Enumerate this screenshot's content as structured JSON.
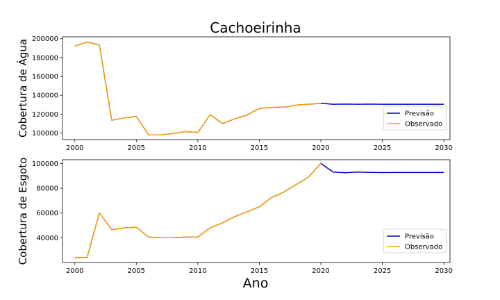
{
  "chart_data": {
    "type": "line",
    "title": "Cachoeirinha",
    "xlabel": "Ano",
    "colors": {
      "Previsão": "#0000cc",
      "Observado": "#ffa500"
    },
    "panels": [
      {
        "ylabel": "Cobertura de Água",
        "xlim": [
          1999,
          2030.5
        ],
        "ylim": [
          93000,
          202000
        ],
        "xticks": [
          2000,
          2005,
          2010,
          2015,
          2020,
          2025,
          2030
        ],
        "yticks": [
          100000,
          120000,
          140000,
          160000,
          180000,
          200000
        ],
        "legend": "lower-right",
        "series": [
          {
            "name": "Previsão",
            "x": [
              2000,
              2001,
              2002,
              2003,
              2004,
              2005,
              2006,
              2007,
              2008,
              2009,
              2010,
              2011,
              2012,
              2013,
              2014,
              2015,
              2016,
              2017,
              2018,
              2019,
              2020,
              2021,
              2022,
              2023,
              2024,
              2025,
              2026,
              2027,
              2028,
              2029,
              2030
            ],
            "y": [
              192000,
              196500,
              193500,
              113500,
              116000,
              117500,
              98000,
              98000,
              99500,
              101500,
              100500,
              119500,
              110000,
              115000,
              119000,
              126000,
              127000,
              127500,
              129500,
              130500,
              131500,
              130500,
              130600,
              130500,
              130600,
              130500,
              130500,
              130500,
              130500,
              130500,
              130500
            ]
          },
          {
            "name": "Observado",
            "x": [
              2000,
              2001,
              2002,
              2003,
              2004,
              2005,
              2006,
              2007,
              2008,
              2009,
              2010,
              2011,
              2012,
              2013,
              2014,
              2015,
              2016,
              2017,
              2018,
              2019,
              2020
            ],
            "y": [
              192000,
              196500,
              193500,
              113500,
              116000,
              117500,
              98000,
              98000,
              99500,
              101500,
              100500,
              119500,
              110000,
              115000,
              119000,
              126000,
              127000,
              127500,
              129500,
              130500,
              131500
            ]
          }
        ]
      },
      {
        "ylabel": "Cobertura de Esgoto",
        "xlim": [
          1999,
          2030.5
        ],
        "ylim": [
          20000,
          103000
        ],
        "xticks": [
          2000,
          2005,
          2010,
          2015,
          2020,
          2025,
          2030
        ],
        "yticks": [
          40000,
          60000,
          80000,
          100000
        ],
        "legend": "lower-right",
        "series": [
          {
            "name": "Previsão",
            "x": [
              2000,
              2001,
              2002,
              2003,
              2004,
              2005,
              2006,
              2007,
              2008,
              2009,
              2010,
              2011,
              2012,
              2013,
              2014,
              2015,
              2016,
              2017,
              2018,
              2019,
              2020,
              2021,
              2022,
              2023,
              2024,
              2025,
              2026,
              2027,
              2028,
              2029,
              2030
            ],
            "y": [
              24000,
              24000,
              60000,
              46500,
              48000,
              48500,
              40500,
              40000,
              40000,
              40500,
              40500,
              48000,
              52000,
              57000,
              61000,
              65000,
              72500,
              77000,
              83000,
              89000,
              100000,
              93000,
              92500,
              93000,
              92800,
              92600,
              92700,
              92700,
              92700,
              92700,
              92700
            ]
          },
          {
            "name": "Observado",
            "x": [
              2000,
              2001,
              2002,
              2003,
              2004,
              2005,
              2006,
              2007,
              2008,
              2009,
              2010,
              2011,
              2012,
              2013,
              2014,
              2015,
              2016,
              2017,
              2018,
              2019,
              2020
            ],
            "y": [
              24000,
              24000,
              60000,
              46500,
              48000,
              48500,
              40500,
              40000,
              40000,
              40500,
              40500,
              48000,
              52000,
              57000,
              61000,
              65000,
              72500,
              77000,
              83000,
              89000,
              100000
            ]
          }
        ]
      }
    ]
  }
}
